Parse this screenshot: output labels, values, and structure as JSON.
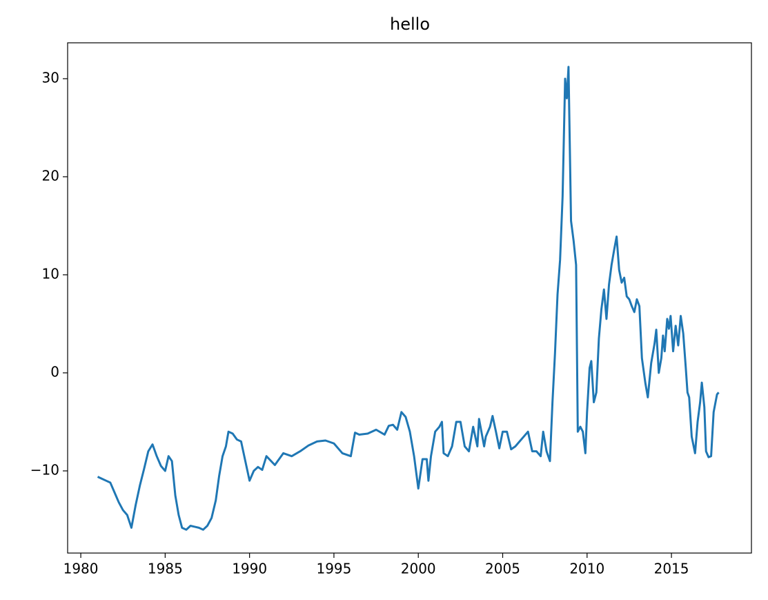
{
  "chart_data": {
    "type": "line",
    "title": "hello",
    "color": "#1f77b4",
    "x": [
      1981.0,
      1981.25,
      1981.5,
      1981.75,
      1982.0,
      1982.25,
      1982.5,
      1982.75,
      1983.0,
      1983.25,
      1983.5,
      1983.75,
      1984.0,
      1984.25,
      1984.5,
      1984.75,
      1985.0,
      1985.2,
      1985.4,
      1985.6,
      1985.8,
      1986.0,
      1986.25,
      1986.5,
      1986.75,
      1987.0,
      1987.25,
      1987.5,
      1987.75,
      1988.0,
      1988.2,
      1988.4,
      1988.6,
      1988.75,
      1989.0,
      1989.25,
      1989.5,
      1989.75,
      1990.0,
      1990.25,
      1990.5,
      1990.75,
      1991.0,
      1991.5,
      1992.0,
      1992.5,
      1993.0,
      1993.5,
      1994.0,
      1994.5,
      1995.0,
      1995.5,
      1996.0,
      1996.25,
      1996.5,
      1997.0,
      1997.5,
      1998.0,
      1998.25,
      1998.5,
      1998.75,
      1999.0,
      1999.25,
      1999.5,
      1999.75,
      2000.0,
      2000.25,
      2000.5,
      2000.6,
      2000.75,
      2001.0,
      2001.25,
      2001.4,
      2001.5,
      2001.75,
      2002.0,
      2002.25,
      2002.5,
      2002.75,
      2003.0,
      2003.25,
      2003.5,
      2003.6,
      2003.9,
      2004.0,
      2004.25,
      2004.4,
      2004.6,
      2004.8,
      2005.0,
      2005.25,
      2005.5,
      2005.75,
      2006.0,
      2006.5,
      2006.75,
      2007.0,
      2007.25,
      2007.4,
      2007.6,
      2007.8,
      2007.95,
      2008.1,
      2008.25,
      2008.4,
      2008.55,
      2008.7,
      2008.8,
      2008.9,
      2009.05,
      2009.2,
      2009.35,
      2009.45,
      2009.6,
      2009.75,
      2009.9,
      2010.0,
      2010.15,
      2010.25,
      2010.4,
      2010.55,
      2010.7,
      2010.85,
      2011.0,
      2011.15,
      2011.3,
      2011.45,
      2011.6,
      2011.75,
      2011.9,
      2012.05,
      2012.2,
      2012.35,
      2012.5,
      2012.65,
      2012.8,
      2012.95,
      2013.1,
      2013.25,
      2013.45,
      2013.6,
      2013.8,
      2014.0,
      2014.1,
      2014.25,
      2014.4,
      2014.5,
      2014.6,
      2014.75,
      2014.85,
      2014.95,
      2015.1,
      2015.25,
      2015.4,
      2015.55,
      2015.7,
      2015.85,
      2015.95,
      2016.05,
      2016.2,
      2016.4,
      2016.55,
      2016.7,
      2016.8,
      2016.95,
      2017.05,
      2017.2,
      2017.35,
      2017.5,
      2017.7,
      2017.8
    ],
    "y": [
      -10.6,
      -10.8,
      -11.0,
      -11.2,
      -12.2,
      -13.2,
      -14.0,
      -14.5,
      -15.8,
      -13.5,
      -11.5,
      -9.8,
      -8.0,
      -7.3,
      -8.5,
      -9.5,
      -10.0,
      -8.5,
      -9.0,
      -12.5,
      -14.5,
      -15.8,
      -16.0,
      -15.6,
      -15.7,
      -15.8,
      -16.0,
      -15.6,
      -14.8,
      -13.0,
      -10.5,
      -8.5,
      -7.5,
      -6.0,
      -6.2,
      -6.8,
      -7.0,
      -9.0,
      -11.0,
      -10.0,
      -9.6,
      -9.9,
      -8.5,
      -9.4,
      -8.2,
      -8.5,
      -8.0,
      -7.4,
      -7.0,
      -6.9,
      -7.2,
      -8.2,
      -8.5,
      -6.1,
      -6.3,
      -6.2,
      -5.8,
      -6.3,
      -5.4,
      -5.3,
      -5.8,
      -4.0,
      -4.5,
      -6.0,
      -8.5,
      -11.8,
      -8.8,
      -8.8,
      -11.0,
      -8.5,
      -6.0,
      -5.5,
      -5.0,
      -8.2,
      -8.5,
      -7.5,
      -5.0,
      -5.0,
      -7.5,
      -8.0,
      -5.5,
      -7.5,
      -4.7,
      -7.5,
      -6.5,
      -5.5,
      -4.4,
      -6.0,
      -7.7,
      -6.0,
      -6.0,
      -7.8,
      -7.5,
      -7.0,
      -6.0,
      -8.0,
      -8.0,
      -8.5,
      -6.0,
      -8.0,
      -9.0,
      -3.0,
      2.0,
      8.0,
      11.5,
      18.0,
      30.0,
      28.0,
      31.2,
      15.5,
      13.5,
      11.0,
      -6.0,
      -5.5,
      -6.0,
      -8.2,
      -4.0,
      0.5,
      1.2,
      -3.0,
      -2.0,
      3.5,
      6.5,
      8.5,
      5.5,
      9.0,
      11.0,
      12.5,
      13.9,
      10.5,
      9.2,
      9.7,
      7.8,
      7.5,
      6.8,
      6.2,
      7.5,
      6.8,
      1.5,
      -1.0,
      -2.5,
      1.0,
      3.0,
      4.4,
      0.0,
      1.5,
      3.8,
      2.2,
      5.5,
      4.5,
      5.8,
      2.2,
      4.8,
      2.8,
      5.8,
      4.0,
      0.5,
      -2.0,
      -2.5,
      -6.5,
      -8.2,
      -5.0,
      -3.0,
      -1.0,
      -3.5,
      -8.0,
      -8.6,
      -8.5,
      -4.0,
      -2.2,
      -2.0
    ],
    "xlim": [
      1979.22,
      2019.74
    ],
    "ylim": [
      -18.38,
      33.66
    ],
    "xticks": [
      1980,
      1985,
      1990,
      1995,
      2000,
      2005,
      2010,
      2015
    ],
    "yticks": [
      {
        "value": -10,
        "label": "−10"
      },
      0,
      10,
      20,
      30
    ]
  }
}
